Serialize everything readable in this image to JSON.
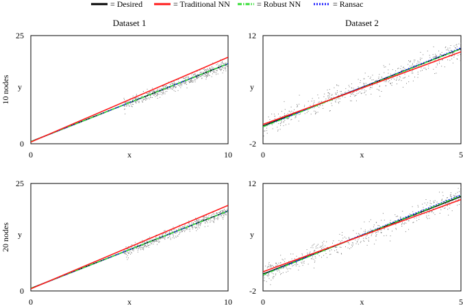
{
  "legend": [
    {
      "key": "desired",
      "label": "= Desired",
      "color": "#000000",
      "style": "solid"
    },
    {
      "key": "traditional",
      "label": "= Traditional NN",
      "color": "#ff1a1a",
      "style": "solid"
    },
    {
      "key": "robust",
      "label": "= Robust NN",
      "color": "#33dd33",
      "style": "dashdot"
    },
    {
      "key": "ransac",
      "label": "= Ransac",
      "color": "#1a1aff",
      "style": "dotted"
    }
  ],
  "columns": [
    "Dataset 1",
    "Dataset 2"
  ],
  "rows": [
    "10 nodes",
    "20 nodes"
  ],
  "chart_data": [
    {
      "type": "line",
      "title": "Dataset 1",
      "row_label": "10 nodes",
      "xlabel": "x",
      "ylabel": "y",
      "xlim": [
        0,
        10
      ],
      "ylim": [
        0,
        25
      ],
      "xticks": [
        "0",
        "10"
      ],
      "yticks": [
        "0",
        "25"
      ],
      "x": [
        0,
        10
      ],
      "series": [
        {
          "name": "Desired",
          "values": [
            0.5,
            18.5
          ]
        },
        {
          "name": "Traditional NN",
          "values": [
            0.4,
            20.0
          ]
        },
        {
          "name": "Robust NN",
          "values": [
            0.5,
            18.5
          ]
        },
        {
          "name": "Ransac",
          "values": [
            0.5,
            18.5
          ]
        }
      ],
      "scatter": {
        "x_range": [
          4.7,
          10
        ],
        "center": {
          "slope": 1.8,
          "intercept": 0.5
        },
        "spread": 0.6
      }
    },
    {
      "type": "line",
      "title": "Dataset 2",
      "row_label": "",
      "xlabel": "x",
      "ylabel": "y",
      "xlim": [
        0,
        5
      ],
      "ylim": [
        -2,
        12
      ],
      "xticks": [
        "0",
        "5"
      ],
      "yticks": [
        "-2",
        "12"
      ],
      "x": [
        0,
        5
      ],
      "series": [
        {
          "name": "Desired",
          "values": [
            0.3,
            10.3
          ]
        },
        {
          "name": "Traditional NN",
          "values": [
            0.5,
            9.9
          ]
        },
        {
          "name": "Robust NN",
          "values": [
            0.2,
            10.3
          ]
        },
        {
          "name": "Ransac",
          "values": [
            0.2,
            10.4
          ]
        }
      ],
      "scatter": {
        "x_range": [
          0,
          5
        ],
        "center": {
          "slope": 2.0,
          "intercept": 0.3
        },
        "spread": 0.7
      }
    },
    {
      "type": "line",
      "title": "",
      "row_label": "20 nodes",
      "xlabel": "x",
      "ylabel": "y",
      "xlim": [
        0,
        10
      ],
      "ylim": [
        0,
        25
      ],
      "xticks": [
        "0",
        "10"
      ],
      "yticks": [
        "0",
        "25"
      ],
      "x": [
        0,
        10
      ],
      "series": [
        {
          "name": "Desired",
          "values": [
            0.6,
            18.6
          ]
        },
        {
          "name": "Traditional NN",
          "values": [
            0.5,
            19.9
          ]
        },
        {
          "name": "Robust NN",
          "values": [
            0.6,
            18.6
          ]
        },
        {
          "name": "Ransac",
          "values": [
            0.6,
            18.6
          ]
        }
      ],
      "scatter": {
        "x_range": [
          4.7,
          10
        ],
        "center": {
          "slope": 1.8,
          "intercept": 0.6
        },
        "spread": 0.6
      }
    },
    {
      "type": "line",
      "title": "",
      "row_label": "",
      "xlabel": "x",
      "ylabel": "y",
      "xlim": [
        0,
        5
      ],
      "ylim": [
        -2,
        12
      ],
      "xticks": [
        "0",
        "5"
      ],
      "yticks": [
        "-2",
        "12"
      ],
      "x": [
        0,
        5
      ],
      "series": [
        {
          "name": "Desired",
          "values": [
            0.2,
            10.3
          ]
        },
        {
          "name": "Traditional NN",
          "values": [
            0.5,
            9.9
          ]
        },
        {
          "name": "Robust NN",
          "values": [
            0.1,
            10.4
          ]
        },
        {
          "name": "Ransac",
          "values": [
            0.1,
            10.5
          ]
        }
      ],
      "scatter": {
        "x_range": [
          0,
          5
        ],
        "center": {
          "slope": 2.0,
          "intercept": 0.2
        },
        "spread": 0.7
      }
    }
  ]
}
